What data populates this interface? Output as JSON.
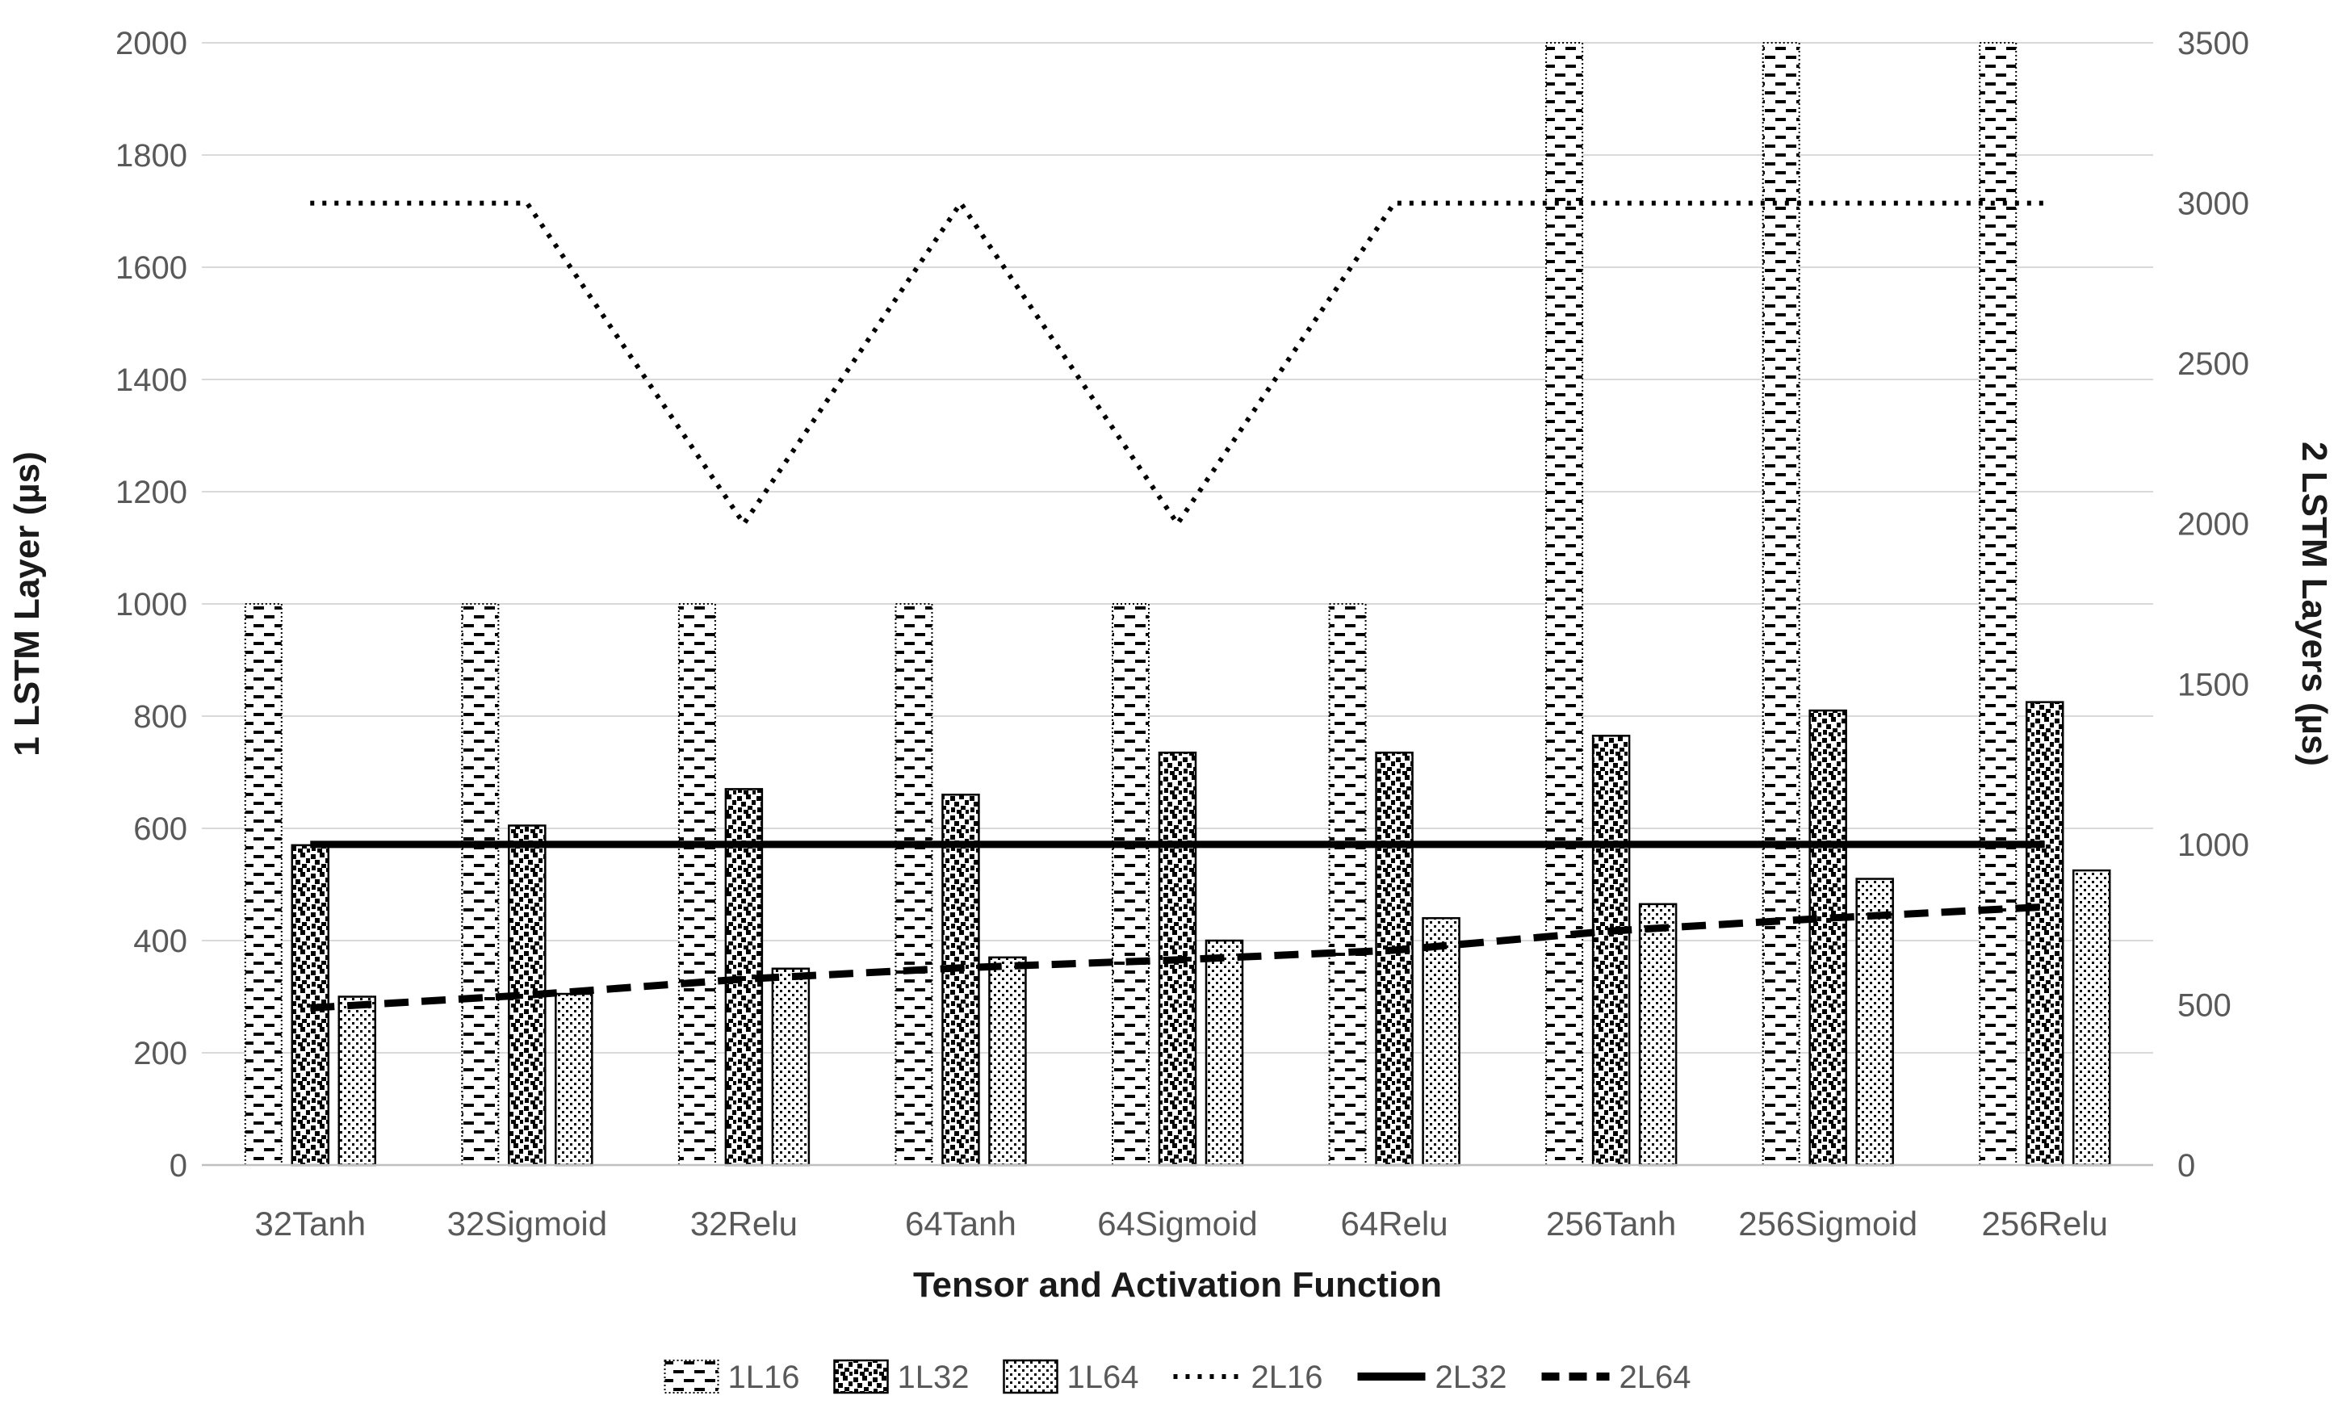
{
  "chart_data": {
    "type": "combo-bar-line",
    "title": "",
    "xlabel": "Tensor and Activation Function",
    "categories": [
      "32Tanh",
      "32Sigmoid",
      "32Relu",
      "64Tanh",
      "64Sigmoid",
      "64Relu",
      "256Tanh",
      "256Sigmoid",
      "256Relu"
    ],
    "left_axis": {
      "title": "1 LSTM Layer (µs)",
      "min": 0,
      "max": 2000,
      "step": 200,
      "ticks": [
        0,
        200,
        400,
        600,
        800,
        1000,
        1200,
        1400,
        1600,
        1800,
        2000
      ]
    },
    "right_axis": {
      "title": "2 LSTM  Layers (µs)",
      "min": 0,
      "max": 3500,
      "step": 500,
      "ticks": [
        0,
        500,
        1000,
        1500,
        2000,
        2500,
        3000,
        3500
      ]
    },
    "bar_series": [
      {
        "name": "1L16",
        "axis": "left",
        "pattern": "horizontal-dashes",
        "values": [
          1000,
          1000,
          1000,
          1000,
          1000,
          1000,
          2000,
          2000,
          2000
        ],
        "clipped_above_axis_max": [
          false,
          false,
          false,
          false,
          false,
          false,
          true,
          true,
          true
        ],
        "note": "256Tanh/256Sigmoid/256Relu bars exceed the 2000 axis maximum and are clipped at the plot top"
      },
      {
        "name": "1L32",
        "axis": "left",
        "pattern": "dense-checker",
        "values": [
          570,
          605,
          670,
          660,
          735,
          735,
          765,
          810,
          825
        ],
        "clipped_above_axis_max": [
          false,
          false,
          false,
          false,
          false,
          false,
          false,
          false,
          false
        ]
      },
      {
        "name": "1L64",
        "axis": "left",
        "pattern": "sparse-dots",
        "values": [
          300,
          305,
          350,
          370,
          400,
          440,
          465,
          510,
          525
        ],
        "clipped_above_axis_max": [
          false,
          false,
          false,
          false,
          false,
          false,
          false,
          false,
          false
        ]
      }
    ],
    "line_series": [
      {
        "name": "2L16",
        "axis": "right",
        "style": "dotted",
        "values": [
          3000,
          3000,
          2000,
          3000,
          2000,
          3000,
          3000,
          3000,
          3000
        ]
      },
      {
        "name": "2L32",
        "axis": "right",
        "style": "solid",
        "values": [
          1000,
          1000,
          1000,
          1000,
          1000,
          1000,
          1000,
          1000,
          1000
        ]
      },
      {
        "name": "2L64",
        "axis": "right",
        "style": "dashed",
        "values": [
          490,
          530,
          580,
          615,
          640,
          670,
          730,
          770,
          805
        ]
      }
    ],
    "legend": {
      "position": "bottom-center",
      "entries": [
        {
          "label": "1L16",
          "swatch": "bar-horizontal-dashes"
        },
        {
          "label": "1L32",
          "swatch": "bar-dense-checker"
        },
        {
          "label": "1L64",
          "swatch": "bar-sparse-dots"
        },
        {
          "label": "2L16",
          "swatch": "line-dotted"
        },
        {
          "label": "2L32",
          "swatch": "line-solid"
        },
        {
          "label": "2L64",
          "swatch": "line-dashed"
        }
      ]
    },
    "layout_hints": {
      "grid": "horizontal-only",
      "background": "#ffffff"
    },
    "colors": {
      "gridline": "#d9d9d9",
      "axis_line": "#bfbfbf",
      "tick_label": "#595959",
      "category_label": "#595959",
      "legend_label": "#595959",
      "axis_title": "#1a1a1a",
      "series_ink": "#000000"
    }
  }
}
